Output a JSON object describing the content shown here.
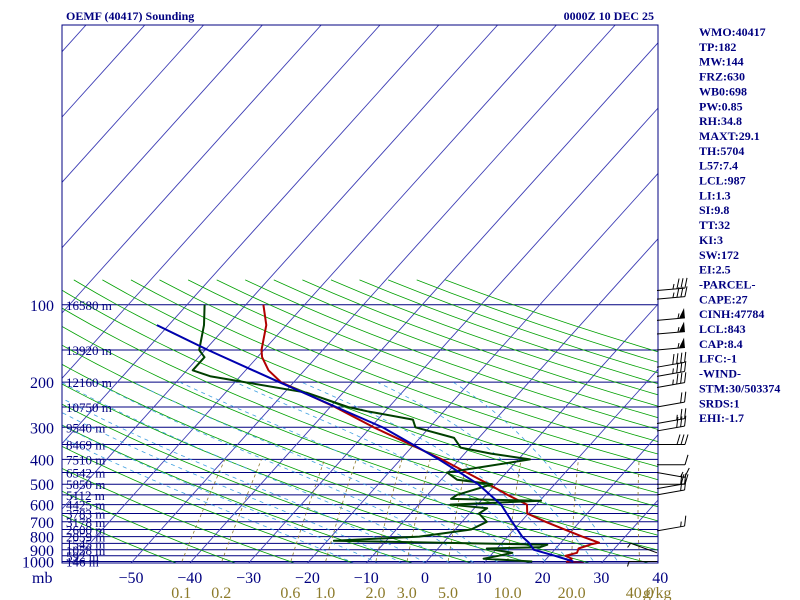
{
  "header": {
    "station_title": "OEMF (40417) Sounding",
    "valid_time": "0000Z 10 DEC 25"
  },
  "axis": {
    "pressure_unit": "mb",
    "mixing_ratio_unit": "g/kg"
  },
  "indices": [
    "WMO:40417",
    "TP:182",
    "MW:144",
    "FRZ:630",
    "WB0:698",
    "PW:0.85",
    "RH:34.8",
    "MAXT:29.1",
    "TH:5704",
    "L57:7.4",
    "LCL:987",
    "LI:1.3",
    "SI:9.8",
    "TT:32",
    "KI:3",
    "SW:172",
    "EI:2.5",
    "-PARCEL-",
    "CAPE:27",
    "CINH:47784",
    "LCL:843",
    "CAP:8.4",
    "LFC:-1",
    "-WIND-",
    "STM:30/503374",
    "SRDS:1",
    "EHI:-1.7"
  ],
  "colors": {
    "temperature": "#b00000",
    "dewpoint": "#004000",
    "parcel": "#0000b0",
    "isobar": "#000080",
    "isotherm": "#3c3cb4",
    "dry_adiabat": "#00a000",
    "moist_adiabat": "#40a0e0",
    "mixing_ratio": "#8c7a2a"
  },
  "chart_data": {
    "type": "line",
    "title": "OEMF (40417) Sounding",
    "subtitle": "0000Z 10 DEC 25",
    "ylabel": "mb",
    "xlabel": "",
    "pressure_ticks": [
      100,
      200,
      300,
      400,
      500,
      600,
      700,
      800,
      900,
      1000
    ],
    "height_labels": [
      {
        "p": 100,
        "label": "16580 m"
      },
      {
        "p": 150,
        "label": "13920 m"
      },
      {
        "p": 200,
        "label": "12160 m"
      },
      {
        "p": 250,
        "label": "10750 m"
      },
      {
        "p": 300,
        "label": "9540 m"
      },
      {
        "p": 350,
        "label": "8469 m"
      },
      {
        "p": 400,
        "label": "7510 m"
      },
      {
        "p": 450,
        "label": "6542 m"
      },
      {
        "p": 500,
        "label": "5850 m"
      },
      {
        "p": 550,
        "label": "5112 m"
      },
      {
        "p": 600,
        "label": "4425 m"
      },
      {
        "p": 650,
        "label": "3783 m"
      },
      {
        "p": 700,
        "label": "3178 m"
      },
      {
        "p": 750,
        "label": "2600 m"
      },
      {
        "p": 800,
        "label": "2059 m"
      },
      {
        "p": 850,
        "label": "1545 m"
      },
      {
        "p": 900,
        "label": "1058 m"
      },
      {
        "p": 950,
        "label": "592 m"
      },
      {
        "p": 1000,
        "label": "146 m"
      }
    ],
    "temperature_ticks": [
      -50,
      -40,
      -30,
      -20,
      -10,
      0,
      10,
      20,
      30,
      40
    ],
    "mixing_ratio_ticks": [
      "0.1",
      "0.2",
      "0.6",
      "1.0",
      "2.0",
      "3.0",
      "5.0",
      "10.0",
      "20.0",
      "40.0"
    ],
    "series": [
      {
        "key": "temperature",
        "points": [
          [
            1013,
            27.0
          ],
          [
            1005,
            24.0
          ],
          [
            975,
            24.3
          ],
          [
            950,
            22.8
          ],
          [
            925,
            24.3
          ],
          [
            890,
            23.9
          ],
          [
            855,
            25.5
          ],
          [
            845,
            26.5
          ],
          [
            800,
            22.7
          ],
          [
            700,
            14.2
          ],
          [
            650,
            9.8
          ],
          [
            600,
            8.4
          ],
          [
            550,
            3.6
          ],
          [
            500,
            -1.2
          ],
          [
            450,
            -6.8
          ],
          [
            400,
            -13.0
          ],
          [
            350,
            -20.6
          ],
          [
            300,
            -29.5
          ],
          [
            250,
            -39.2
          ],
          [
            200,
            -52.2
          ],
          [
            180,
            -56.1
          ],
          [
            160,
            -59.2
          ],
          [
            150,
            -60.4
          ],
          [
            120,
            -63.4
          ],
          [
            100,
            -67.0
          ]
        ]
      },
      {
        "key": "dewpoint",
        "points": [
          [
            1000,
            18.0
          ],
          [
            975,
            9.3
          ],
          [
            950,
            11.4
          ],
          [
            925,
            13.3
          ],
          [
            890,
            8.3
          ],
          [
            880,
            17.1
          ],
          [
            860,
            18.0
          ],
          [
            830,
            -18.9
          ],
          [
            800,
            -5.0
          ],
          [
            750,
            2.7
          ],
          [
            700,
            4.2
          ],
          [
            650,
            1.6
          ],
          [
            620,
            2.2
          ],
          [
            600,
            -4.6
          ],
          [
            580,
            10.2
          ],
          [
            570,
            -5.4
          ],
          [
            550,
            -5.0
          ],
          [
            500,
            -0.6
          ],
          [
            480,
            -7.3
          ],
          [
            450,
            -10.1
          ],
          [
            400,
            2.0
          ],
          [
            380,
            -5.5
          ],
          [
            360,
            -11.6
          ],
          [
            330,
            -14.2
          ],
          [
            300,
            -22.4
          ],
          [
            280,
            -24.0
          ],
          [
            260,
            -33.0
          ],
          [
            250,
            -37.0
          ],
          [
            220,
            -46.2
          ],
          [
            190,
            -65.0
          ],
          [
            180,
            -69.0
          ],
          [
            160,
            -69.0
          ],
          [
            150,
            -71.0
          ],
          [
            120,
            -74.0
          ],
          [
            100,
            -77.0
          ]
        ]
      },
      {
        "key": "parcel",
        "points": [
          [
            1000,
            25.0
          ],
          [
            950,
            21.0
          ],
          [
            900,
            16.5
          ],
          [
            843,
            14.5
          ],
          [
            800,
            12.5
          ],
          [
            700,
            8.5
          ],
          [
            600,
            4.0
          ],
          [
            500,
            -3.0
          ],
          [
            400,
            -13.5
          ],
          [
            300,
            -28.0
          ],
          [
            250,
            -39.0
          ],
          [
            200,
            -52.5
          ],
          [
            150,
            -69.5
          ],
          [
            120,
            -82.0
          ]
        ]
      }
    ],
    "wind_barbs": [
      {
        "p": 1000,
        "speed": 5,
        "dir": 90
      },
      {
        "p": 925,
        "speed": 5,
        "dir": 110
      },
      {
        "p": 760,
        "speed": 15,
        "dir": 260
      },
      {
        "p": 550,
        "speed": 20,
        "dir": 260
      },
      {
        "p": 520,
        "speed": 20,
        "dir": 260
      },
      {
        "p": 500,
        "speed": 20,
        "dir": 270
      },
      {
        "p": 450,
        "speed": 15,
        "dir": 280
      },
      {
        "p": 420,
        "speed": 10,
        "dir": 270
      },
      {
        "p": 350,
        "speed": 30,
        "dir": 270
      },
      {
        "p": 310,
        "speed": 30,
        "dir": 260
      },
      {
        "p": 290,
        "speed": 25,
        "dir": 260
      },
      {
        "p": 250,
        "speed": 20,
        "dir": 260
      },
      {
        "p": 210,
        "speed": 35,
        "dir": 260
      },
      {
        "p": 190,
        "speed": 35,
        "dir": 260
      },
      {
        "p": 175,
        "speed": 40,
        "dir": 260
      },
      {
        "p": 150,
        "speed": 55,
        "dir": 265
      },
      {
        "p": 130,
        "speed": 55,
        "dir": 265
      },
      {
        "p": 115,
        "speed": 55,
        "dir": 265
      },
      {
        "p": 95,
        "speed": 35,
        "dir": 265
      },
      {
        "p": 88,
        "speed": 35,
        "dir": 265
      }
    ]
  }
}
